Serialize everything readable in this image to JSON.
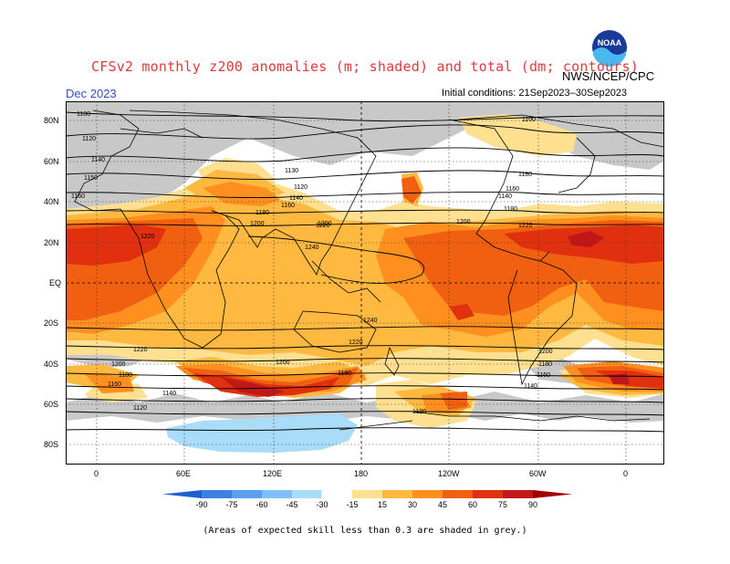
{
  "header": {
    "title": "CFSv2 monthly z200 anomalies (m; shaded) and total (dm; contours)",
    "month": "Dec 2023",
    "initial_conditions": "Initial conditions: 21Sep2023–30Sep2023",
    "agency": "NWS/NCEP/CPC",
    "logo_text": "NOAA"
  },
  "map": {
    "lat_labels": [
      "80N",
      "60N",
      "40N",
      "20N",
      "EQ",
      "20S",
      "40S",
      "60S",
      "80S"
    ],
    "lon_labels": [
      "0",
      "60E",
      "120E",
      "180",
      "120W",
      "60W",
      "0"
    ],
    "contour_labels": [
      "1100",
      "1120",
      "1140",
      "1150",
      "1160",
      "1130",
      "1120",
      "1140",
      "1160",
      "1180",
      "1200",
      "1220",
      "1240",
      "1240",
      "1220",
      "1200",
      "1180",
      "1160",
      "1140",
      "1120",
      "1100",
      "1200",
      "1220",
      "1180",
      "1160",
      "1140",
      "1180",
      "1200",
      "1220",
      "1200",
      "1180",
      "1160",
      "1140",
      "1120",
      "1220",
      "1200",
      "1180"
    ]
  },
  "colorbar": {
    "ticks": [
      "-90",
      "-75",
      "-60",
      "-45",
      "-30",
      "-15",
      "15",
      "30",
      "45",
      "60",
      "75",
      "90"
    ],
    "colors": [
      "#1e60d0",
      "#3c80e0",
      "#5aa0f0",
      "#80c0f8",
      "#a8dcf8",
      "#ffffff",
      "#ffe090",
      "#ffb840",
      "#ff9020",
      "#f06010",
      "#e03010",
      "#c01818",
      "#a00000"
    ]
  },
  "footnote": "(Areas of expected skill less than 0.3 are shaded in grey.)"
}
